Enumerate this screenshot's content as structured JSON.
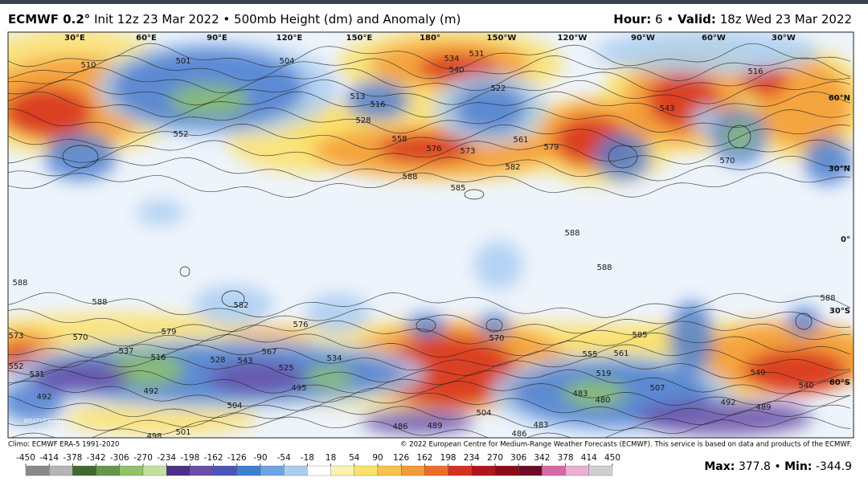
{
  "header": {
    "model": "ECMWF 0.2°",
    "description": "Init 12z 23 Mar 2022 • 500mb Height (dm) and Anomaly (m)",
    "hour_label": "Hour:",
    "hour": 6,
    "separator": "•",
    "valid_label": "Valid:",
    "valid": "18z Wed 23 Mar 2022"
  },
  "map": {
    "longitude_labels": [
      "30°E",
      "60°E",
      "90°E",
      "120°E",
      "150°E",
      "180°",
      "150°W",
      "120°W",
      "90°W",
      "60°W",
      "30°W"
    ],
    "latitude_labels": [
      "60°N",
      "30°N",
      "0°",
      "30°S",
      "60°S"
    ],
    "contour_labels": [
      510,
      501,
      504,
      534,
      531,
      540,
      522,
      516,
      552,
      513,
      516,
      528,
      558,
      576,
      573,
      561,
      579,
      582,
      588,
      585,
      543,
      570,
      588,
      588,
      582,
      576,
      570,
      585,
      561,
      555,
      519,
      507,
      483,
      480,
      579,
      567,
      534,
      528,
      543,
      525,
      516,
      537,
      492,
      552,
      531,
      492,
      570,
      573,
      504,
      498,
      501,
      495,
      504,
      489,
      486,
      486,
      483,
      492,
      489,
      549,
      540,
      588,
      588,
      588
    ],
    "watermark": "WEATHERBELL"
  },
  "footer": {
    "climo": "Climo: ECMWF ERA-5 1991-2020",
    "copyright": "© 2022 European Centre for Medium-Range Weather Forecasts (ECMWF). This service is based on data and products of the ECMWF."
  },
  "colorbar": {
    "range": [
      -450,
      450
    ],
    "ticks": [
      -450,
      -414,
      -378,
      -342,
      -306,
      -270,
      -234,
      -198,
      -162,
      -126,
      -90,
      -54,
      -18,
      18,
      54,
      90,
      126,
      162,
      198,
      234,
      270,
      306,
      342,
      378,
      414,
      450
    ],
    "colors": [
      "#8a8a8a",
      "#b4b4b4",
      "#3f6b2f",
      "#63984a",
      "#8fc26a",
      "#c3e0a0",
      "#4b2f86",
      "#6a4fa8",
      "#4a56b8",
      "#3f7fd0",
      "#6fa3e3",
      "#a9cdf2",
      "#ffffff",
      "#fdf3b0",
      "#fbe06a",
      "#f8c24c",
      "#f59a36",
      "#ee6c2a",
      "#d7301f",
      "#b3131a",
      "#8c0a14",
      "#6e0a24",
      "#d76aa6",
      "#eab0d2",
      "#cfcfcf"
    ]
  },
  "stats": {
    "max_label": "Max:",
    "max": 377.8,
    "separator": "•",
    "min_label": "Min:",
    "min": -344.9
  }
}
